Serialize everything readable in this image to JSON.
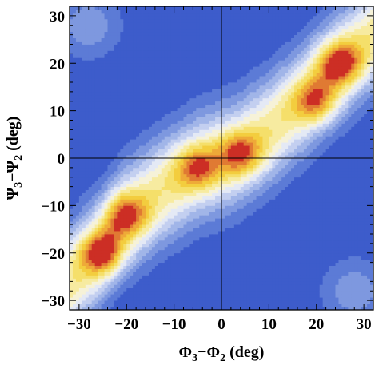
{
  "chart_data": {
    "type": "heatmap",
    "plot_style": "filled contour",
    "xlabel": {
      "base": "Φ",
      "a": "3",
      "minus": "−",
      "b": "2",
      "unit": " (deg)"
    },
    "ylabel": {
      "base": "Ψ",
      "a": "3",
      "minus": "−",
      "b": "2",
      "unit": " (deg)"
    },
    "xlim": [
      -32,
      32
    ],
    "ylim": [
      -32,
      32
    ],
    "x_ticks": [
      -30,
      -20,
      -10,
      0,
      10,
      20,
      30
    ],
    "x_tick_labels": [
      "−30",
      "−20",
      "−10",
      "0",
      "10",
      "20",
      "30"
    ],
    "y_ticks": [
      -30,
      -20,
      -10,
      0,
      10,
      20,
      30
    ],
    "y_tick_labels": [
      "−30",
      "−20",
      "−10",
      "0",
      "10",
      "20",
      "30"
    ],
    "reference_lines": {
      "x": 0,
      "y": 0
    },
    "levels": [
      0.08,
      0.16,
      0.24,
      0.32,
      0.4,
      0.48,
      0.56,
      0.64,
      0.72,
      0.8,
      0.88,
      0.95
    ],
    "colors": [
      "#3d5ccb",
      "#5c7bd6",
      "#7e98df",
      "#a1b5e8",
      "#c3cff0",
      "#e4e9f5",
      "#f6f2d8",
      "#f7eba0",
      "#f5df6a",
      "#f3cd3e",
      "#eeaa38",
      "#e07a33",
      "#cc2e25"
    ],
    "ridge": [
      [
        -32,
        -26
      ],
      [
        -26,
        -20
      ],
      [
        -21,
        -13
      ],
      [
        -13,
        -7
      ],
      [
        -5,
        -2
      ],
      [
        3,
        1
      ],
      [
        10,
        6
      ],
      [
        17,
        12
      ],
      [
        25,
        20
      ],
      [
        32,
        26
      ]
    ],
    "peaks": [
      {
        "x": -25,
        "y": -20,
        "height": 1.0
      },
      {
        "x": 25,
        "y": 20,
        "height": 1.0
      },
      {
        "x": -20,
        "y": -12,
        "height": 0.85
      },
      {
        "x": 20,
        "y": 12,
        "height": 0.8
      },
      {
        "x": -5,
        "y": -2,
        "height": 0.78
      },
      {
        "x": 4,
        "y": 1,
        "height": 0.82
      }
    ]
  }
}
